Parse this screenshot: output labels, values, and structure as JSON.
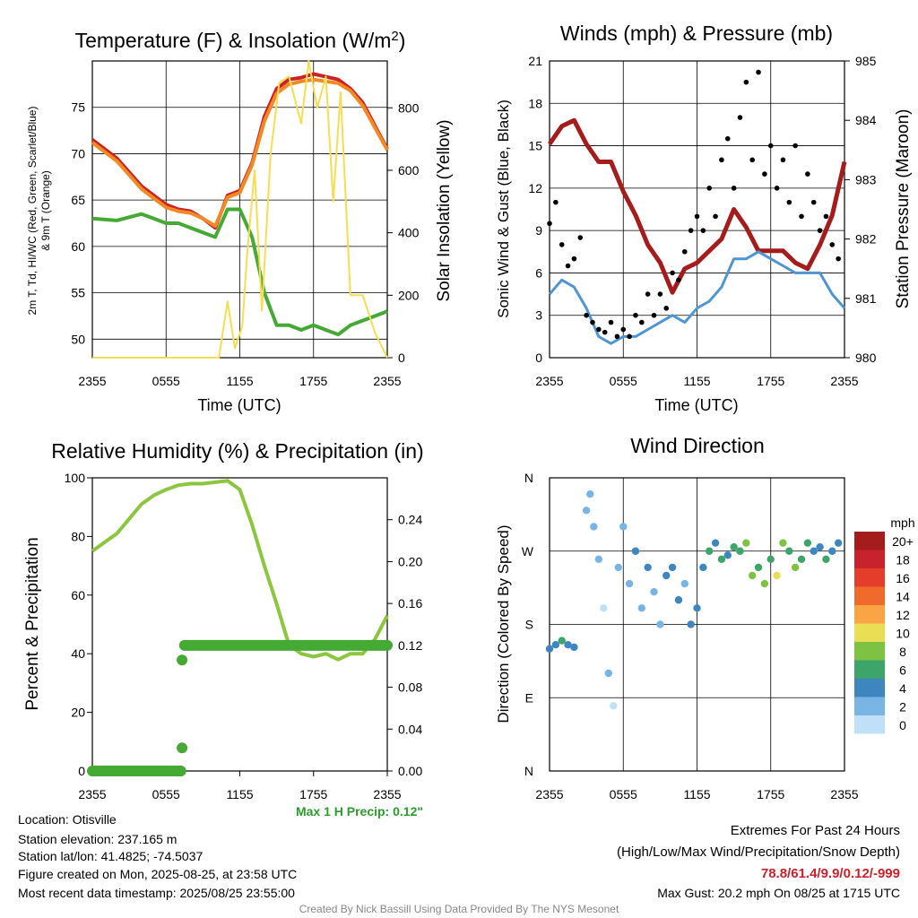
{
  "footer": {
    "location": "Location: Otisville",
    "elevation": "Station elevation: 237.165 m",
    "latlon": "Station lat/lon: 41.4825; -74.5037",
    "created": "Figure created on Mon, 2025-08-25, at 23:58 UTC",
    "recent": "Most recent data timestamp: 2025/08/25 23:55:00",
    "ext_title": "Extremes For Past 24 Hours",
    "ext_sub": "(High/Low/Max Wind/Precipitation/Snow Depth)",
    "ext_values": "78.8/61.4/9.9/0.12/-999",
    "max_gust": "Max Gust: 20.2 mph On 08/25 at 1715 UTC",
    "credit": "Created By Nick Bassill Using Data Provided By The NYS Mesonet",
    "max_precip": "Max 1 H Precip: 0.12\""
  },
  "chart_data": [
    {
      "type": "line",
      "title": "Temperature (F) & Insolation (W/m²)",
      "xlabel": "Time (UTC)",
      "ylabel": "2m T, Td, HI/WC (Red, Green, Scarlet/Blue) & 9m T (Orange)",
      "ylabel_right": "Solar Insolation (Yellow)",
      "x_ticks": [
        "2355",
        "0555",
        "1155",
        "1755",
        "2355"
      ],
      "ylim": [
        48,
        80
      ],
      "y_ticks": [
        50,
        55,
        60,
        65,
        70,
        75
      ],
      "ylim_right": [
        0,
        950
      ],
      "y_ticks_right": [
        0,
        200,
        400,
        600,
        800
      ],
      "x_hours": [
        0,
        2,
        4,
        5,
        6,
        7,
        8,
        9,
        10,
        11,
        12,
        13,
        14,
        15,
        16,
        17,
        18,
        19,
        20,
        21,
        22,
        23,
        24
      ],
      "series": [
        {
          "name": "2m T",
          "color": "#cc2222",
          "values": [
            71.5,
            69.5,
            66.5,
            65.5,
            64.5,
            64,
            63.8,
            63,
            62,
            65.5,
            66,
            69,
            74,
            77,
            78,
            78.2,
            78.6,
            78.3,
            78,
            77,
            75.5,
            73,
            70.5
          ]
        },
        {
          "name": "Td",
          "color": "#44aa33",
          "values": [
            63,
            62.8,
            63.5,
            63,
            62.5,
            62.5,
            62,
            61.5,
            61,
            64,
            64,
            61,
            55,
            51.5,
            51.5,
            51,
            51.5,
            51,
            50.5,
            51.5,
            52,
            52.5,
            53
          ]
        },
        {
          "name": "9m T",
          "color": "#f08a24",
          "values": [
            71.2,
            69.2,
            66.2,
            65.2,
            64.2,
            63.8,
            63.6,
            63,
            62.2,
            65.3,
            65.8,
            68.8,
            73.5,
            76.5,
            77.5,
            77.8,
            78,
            77.8,
            77.6,
            76.8,
            75.2,
            72.8,
            70.4
          ]
        },
        {
          "name": "Solar Insolation",
          "color": "#f5dd55",
          "axis": "right",
          "x": [
            0,
            3,
            6,
            9,
            10.3,
            11,
            11.6,
            12.2,
            12.6,
            13.2,
            13.8,
            14.5,
            15.2,
            16,
            17,
            17.6,
            18.3,
            19,
            19.6,
            20.2,
            21,
            22,
            23,
            24
          ],
          "values": [
            0,
            0,
            0,
            0,
            0,
            180,
            30,
            100,
            330,
            600,
            150,
            650,
            880,
            900,
            750,
            950,
            800,
            900,
            500,
            850,
            200,
            200,
            80,
            0
          ]
        }
      ]
    },
    {
      "type": "line",
      "title": "Winds (mph) & Pressure (mb)",
      "xlabel": "Time (UTC)",
      "ylabel": "Sonic Wind & Gust (Blue, Black)",
      "ylabel_right": "Station Pressure (Maroon)",
      "x_ticks": [
        "2355",
        "0555",
        "1155",
        "1755",
        "2355"
      ],
      "ylim": [
        0,
        21
      ],
      "y_ticks": [
        0,
        3,
        6,
        9,
        12,
        15,
        18,
        21
      ],
      "ylim_right": [
        980,
        985
      ],
      "y_ticks_right": [
        980,
        981,
        982,
        983,
        984,
        985
      ],
      "series": [
        {
          "name": "Station Pressure",
          "color": "#a51c1c",
          "axis": "right",
          "x": [
            0,
            1,
            2,
            3,
            4,
            5,
            6,
            7,
            8,
            9,
            10,
            11,
            12,
            13,
            14,
            15,
            16,
            17,
            18,
            19,
            20,
            21,
            22,
            23,
            24
          ],
          "values": [
            983.6,
            983.9,
            984,
            983.6,
            983.3,
            983.3,
            982.8,
            982.4,
            981.9,
            981.6,
            981.1,
            981.5,
            981.6,
            981.8,
            982,
            982.5,
            982.2,
            981.8,
            981.8,
            981.8,
            981.6,
            981.5,
            981.9,
            982.4,
            983.3
          ]
        },
        {
          "name": "Sonic Wind",
          "color": "#4f95d2",
          "x": [
            0,
            1,
            2,
            3,
            4,
            5,
            6,
            7,
            8,
            9,
            10,
            11,
            12,
            13,
            14,
            15,
            16,
            17,
            18,
            19,
            20,
            21,
            22,
            23,
            24
          ],
          "values": [
            4.5,
            5.5,
            5,
            3.5,
            1.5,
            1,
            1.5,
            1.5,
            2,
            2.5,
            3,
            2.5,
            3.5,
            4,
            5,
            7,
            7,
            7.5,
            7,
            6.5,
            6,
            6,
            6,
            4.5,
            3.5
          ]
        },
        {
          "name": "Gust",
          "color": "#000000",
          "type": "scatter",
          "x": [
            0,
            0.5,
            1,
            1.5,
            2,
            2.5,
            3,
            3.5,
            4,
            4.5,
            5,
            5.5,
            6,
            6.5,
            7,
            7.5,
            8,
            8.5,
            9,
            9.5,
            10,
            10.5,
            11,
            11.5,
            12,
            12.5,
            13,
            13.5,
            14,
            14.5,
            15,
            15.5,
            16,
            16.5,
            17,
            17.5,
            18,
            18.5,
            19,
            19.5,
            20,
            20.5,
            21,
            21.5,
            22,
            22.5,
            23,
            23.5
          ],
          "values": [
            9.5,
            11,
            8,
            6.5,
            7,
            8.5,
            3,
            2.5,
            2,
            1.8,
            2.5,
            1.5,
            2,
            1.5,
            3,
            2.5,
            4.5,
            3,
            4.5,
            3.5,
            6,
            5.5,
            7.5,
            9,
            10,
            9,
            12,
            10,
            14,
            15.5,
            12,
            17,
            19.5,
            14,
            20.2,
            13,
            15,
            12,
            14,
            11,
            15,
            10,
            13,
            11,
            9,
            10,
            8,
            7
          ]
        }
      ]
    },
    {
      "type": "line",
      "title": "Relative Humidity (%) & Precipitation (in)",
      "ylabel": "Percent & Precipitation",
      "x_ticks": [
        "2355",
        "0555",
        "1155",
        "1755",
        "2355"
      ],
      "ylim": [
        0,
        100
      ],
      "y_ticks": [
        0,
        20,
        40,
        60,
        80,
        100
      ],
      "ylim_right": [
        0,
        0.28
      ],
      "y_ticks_right": [
        "0.00",
        "0.04",
        "0.08",
        "0.12",
        "0.16",
        "0.20",
        "0.24"
      ],
      "series": [
        {
          "name": "Relative Humidity",
          "color": "#8cc63f",
          "x": [
            0,
            1,
            2,
            3,
            4,
            5,
            6,
            7,
            8,
            9,
            10,
            11,
            12,
            13,
            14,
            15,
            16,
            17,
            18,
            19,
            20,
            21,
            22,
            23,
            24
          ],
          "values": [
            75,
            78,
            81,
            86,
            91,
            94,
            96,
            97.5,
            98,
            98,
            98.5,
            99,
            96,
            84,
            70,
            57,
            43,
            40,
            39,
            40,
            38,
            40,
            40,
            45,
            53
          ]
        },
        {
          "name": "Precipitation",
          "color": "#44aa33",
          "axis": "right",
          "type": "step",
          "x": [
            0,
            7,
            7.2,
            7.4,
            24
          ],
          "values": [
            0,
            0,
            0.02,
            0.11,
            0.12
          ]
        }
      ]
    },
    {
      "type": "scatter",
      "title": "Wind Direction",
      "ylabel": "Direction (Colored By Speed)",
      "x_ticks": [
        "2355",
        "0555",
        "1155",
        "1755",
        "2355"
      ],
      "y_ticks": [
        "N",
        "E",
        "S",
        "W",
        "N"
      ],
      "ylim": [
        0,
        360
      ],
      "legend_title": "mph",
      "legend_labels": [
        "20+",
        "18",
        "16",
        "14",
        "12",
        "10",
        "8",
        "6",
        "4",
        "2",
        "0"
      ],
      "legend_colors": [
        "#a51c1c",
        "#c8232c",
        "#e53d2b",
        "#f06a2c",
        "#f9a545",
        "#e8df55",
        "#7dc242",
        "#3da56a",
        "#3e86c0",
        "#78b5e4",
        "#bfe0f7"
      ],
      "points": {
        "x": [
          0,
          0.5,
          1,
          1.5,
          2,
          3,
          3.3,
          3.6,
          4,
          4.4,
          4.8,
          5.2,
          5.6,
          6,
          6.5,
          7,
          7.5,
          8,
          8.5,
          9,
          9.5,
          10,
          10.5,
          11,
          11.5,
          12,
          12.5,
          13,
          13.5,
          14,
          14.5,
          15,
          15.5,
          16,
          16.5,
          17,
          17.5,
          18,
          18.5,
          19,
          19.5,
          20,
          20.5,
          21,
          21.5,
          22,
          22.5,
          23,
          23.5
        ],
        "values": [
          150,
          155,
          160,
          155,
          152,
          320,
          340,
          300,
          260,
          200,
          120,
          80,
          250,
          300,
          230,
          270,
          200,
          250,
          220,
          180,
          240,
          250,
          210,
          230,
          180,
          200,
          250,
          270,
          280,
          260,
          265,
          275,
          270,
          280,
          240,
          250,
          230,
          260,
          240,
          280,
          270,
          250,
          260,
          280,
          270,
          275,
          260,
          270,
          280
        ],
        "speeds": [
          3,
          4,
          5,
          3,
          3,
          1,
          1,
          2,
          1,
          0,
          1,
          0,
          2,
          1,
          2,
          3,
          2,
          3,
          2,
          1,
          3,
          3,
          3,
          2,
          3,
          4,
          4,
          5,
          4,
          5,
          4,
          6,
          5,
          8,
          7,
          6,
          8,
          6,
          9,
          7,
          6,
          7,
          6,
          5,
          4,
          4,
          5,
          4,
          3
        ]
      }
    }
  ]
}
